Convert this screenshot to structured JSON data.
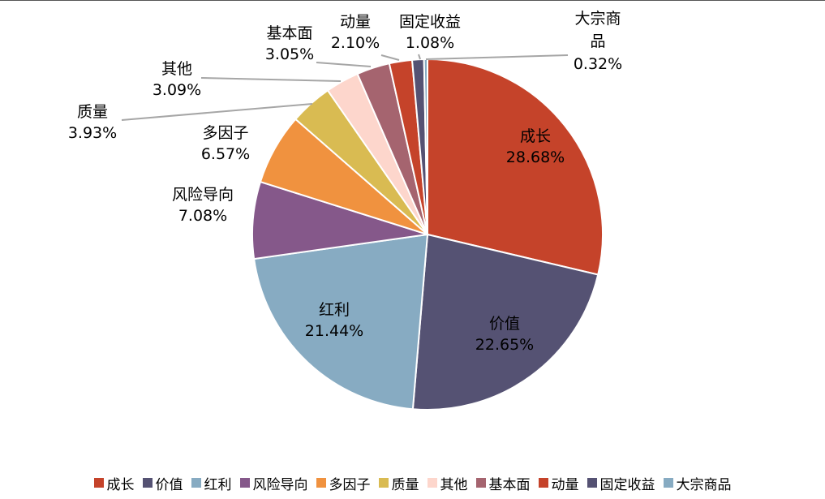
{
  "chart_data": {
    "type": "pie",
    "title": "",
    "legend_position": "bottom",
    "slices": [
      {
        "name": "成长",
        "value": 28.68,
        "label": "28.68%",
        "color": "#c5432a"
      },
      {
        "name": "价值",
        "value": 22.65,
        "label": "22.65%",
        "color": "#555273"
      },
      {
        "name": "红利",
        "value": 21.44,
        "label": "21.44%",
        "color": "#87abc2"
      },
      {
        "name": "风险导向",
        "value": 7.08,
        "label": "7.08%",
        "color": "#85588a"
      },
      {
        "name": "多因子",
        "value": 6.57,
        "label": "6.57%",
        "color": "#f0923f"
      },
      {
        "name": "质量",
        "value": 3.93,
        "label": "3.93%",
        "color": "#d9bb52"
      },
      {
        "name": "其他",
        "value": 3.09,
        "label": "3.09%",
        "color": "#fdd6cc"
      },
      {
        "name": "基本面",
        "value": 3.05,
        "label": "3.05%",
        "color": "#a5646f"
      },
      {
        "name": "动量",
        "value": 2.1,
        "label": "2.10%",
        "color": "#c5432a"
      },
      {
        "name": "固定收益",
        "value": 1.08,
        "label": "1.08%",
        "color": "#555273"
      },
      {
        "name": "大宗商品",
        "value": 0.32,
        "label": "0.32%",
        "color": "#87abc2"
      }
    ]
  }
}
